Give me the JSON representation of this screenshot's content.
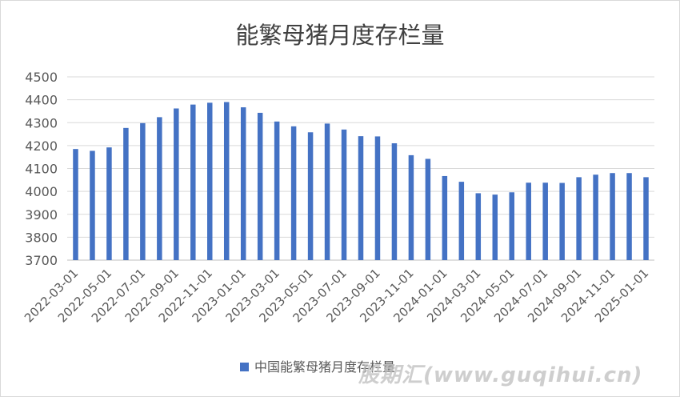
{
  "chart_data": {
    "type": "bar",
    "title": "能繁母猪月度存栏量",
    "xlabel": "",
    "ylabel": "",
    "ylim": [
      3700,
      4500
    ],
    "yticks": [
      3700,
      3800,
      3900,
      4000,
      4100,
      4200,
      4300,
      4400,
      4500
    ],
    "grid": true,
    "legend_position": "bottom",
    "categories": [
      "2022-03-01",
      "2022-04-01",
      "2022-05-01",
      "2022-06-01",
      "2022-07-01",
      "2022-08-01",
      "2022-09-01",
      "2022-10-01",
      "2022-11-01",
      "2022-12-01",
      "2023-01-01",
      "2023-02-01",
      "2023-03-01",
      "2023-04-01",
      "2023-05-01",
      "2023-06-01",
      "2023-07-01",
      "2023-08-01",
      "2023-09-01",
      "2023-10-01",
      "2023-11-01",
      "2023-12-01",
      "2024-01-01",
      "2024-02-01",
      "2024-03-01",
      "2024-04-01",
      "2024-05-01",
      "2024-06-01",
      "2024-07-01",
      "2024-08-01",
      "2024-09-01",
      "2024-10-01",
      "2024-11-01",
      "2024-12-01",
      "2025-01-01"
    ],
    "tick_labels": [
      "2022-03-01",
      "2022-05-01",
      "2022-07-01",
      "2022-09-01",
      "2022-11-01",
      "2023-01-01",
      "2023-03-01",
      "2023-05-01",
      "2023-07-01",
      "2023-09-01",
      "2023-11-01",
      "2024-01-01",
      "2024-03-01",
      "2024-05-01",
      "2024-07-01",
      "2024-09-01",
      "2024-11-01",
      "2025-01-01"
    ],
    "series": [
      {
        "name": "中国能繁母猪月度存栏量",
        "color": "#4472c4",
        "values": [
          4185,
          4177,
          4192,
          4277,
          4298,
          4324,
          4362,
          4379,
          4387,
          4390,
          4367,
          4343,
          4305,
          4284,
          4258,
          4296,
          4270,
          4241,
          4240,
          4210,
          4158,
          4142,
          4067,
          4042,
          3992,
          3986,
          3996,
          4038,
          4038,
          4037,
          4062,
          4073,
          4080,
          4080,
          4062
        ]
      }
    ]
  },
  "watermark": "股期汇(www.guqihui.cn)",
  "colors": {
    "bar": "#4472c4",
    "grid": "#d9d9d9",
    "axis_text": "#595959",
    "title": "#404040"
  }
}
